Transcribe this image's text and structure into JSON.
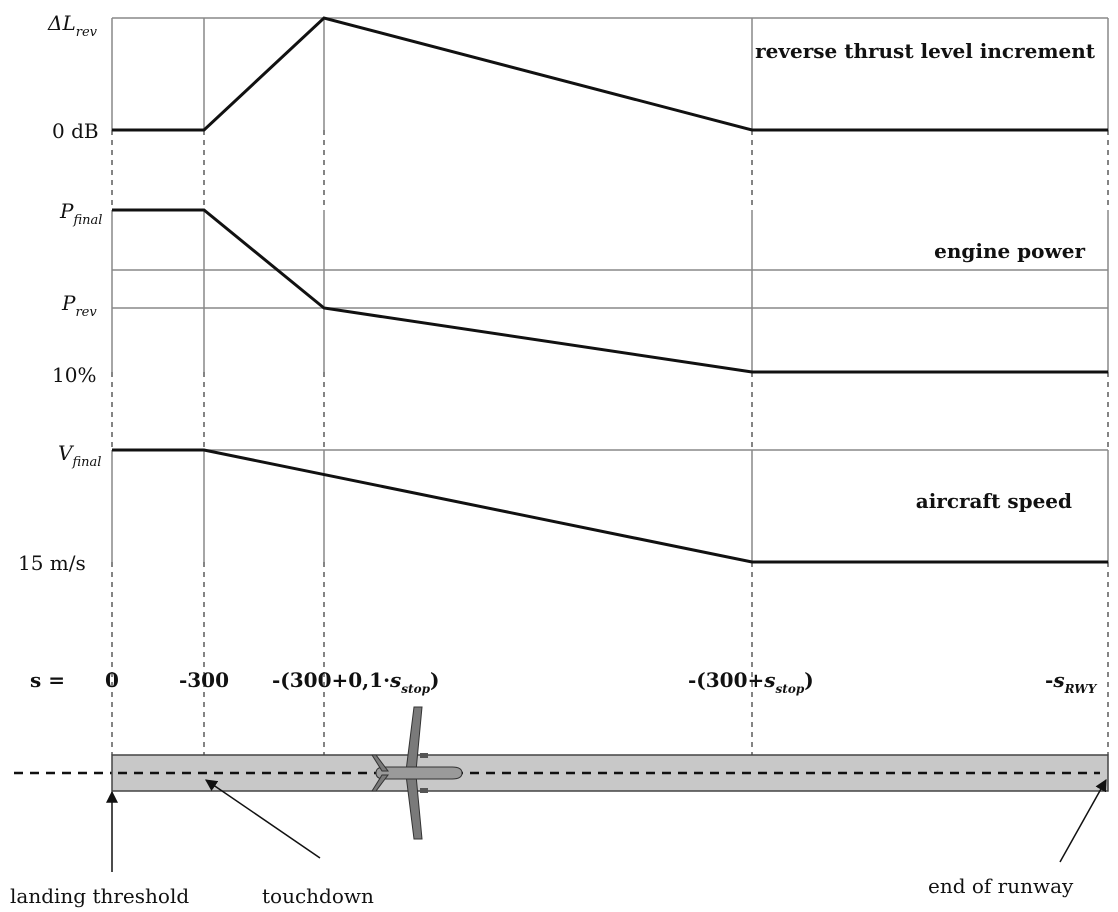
{
  "panels": {
    "reverse_thrust": {
      "title": "reverse thrust level increment",
      "y_top_label": "ΔL",
      "y_top_sub": "rev",
      "y_bottom_label": "0 dB",
      "points": [
        [
          0,
          0
        ],
        [
          -300,
          0
        ],
        [
          "-(300+0,1·s_stop)",
          1
        ],
        [
          "-(300+s_stop)",
          0
        ],
        [
          "-s_RWY",
          0
        ]
      ]
    },
    "engine_power": {
      "title": "engine power",
      "y_top_label": "P",
      "y_top_sub": "final",
      "y_mid_label": "P",
      "y_mid_sub": "rev",
      "y_bottom_label": "10%",
      "points": [
        [
          0,
          "P_final"
        ],
        [
          -300,
          "P_final"
        ],
        [
          "-(300+0,1·s_stop)",
          "P_rev"
        ],
        [
          "-(300+s_stop)",
          "10%"
        ],
        [
          "-s_RWY",
          "10%"
        ]
      ]
    },
    "aircraft_speed": {
      "title": "aircraft speed",
      "y_top_label": "V",
      "y_top_sub": "final",
      "y_bottom_label": "15 m/s",
      "points": [
        [
          0,
          "V_final"
        ],
        [
          -300,
          "V_final"
        ],
        [
          "-(300+s_stop)",
          "15 m/s"
        ],
        [
          "-s_RWY",
          "15 m/s"
        ]
      ]
    }
  },
  "axis": {
    "s_label": "s =",
    "t0": "0",
    "t1": "-300",
    "t2_pre": "-(300+0,1·",
    "t2_s": "s",
    "t2_sub": "stop",
    "t2_post": ")",
    "t3_pre": "-(300+",
    "t3_s": "s",
    "t3_sub": "stop",
    "t3_post": ")",
    "t4_pre": "-",
    "t4_s": "s",
    "t4_sub": "RWY"
  },
  "runway": {
    "landing_threshold": "landing threshold",
    "touchdown": "touchdown",
    "end_of_runway": "end of runway"
  }
}
